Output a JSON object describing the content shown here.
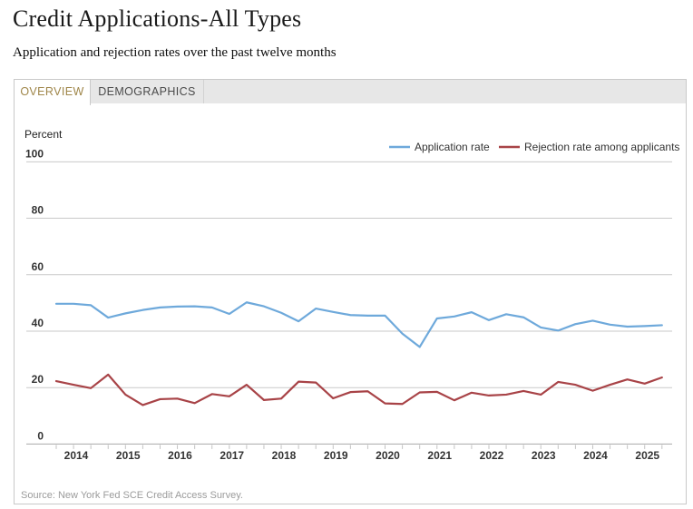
{
  "header": {
    "title": "Credit Applications-All Types",
    "subtitle": "Application and rejection rates over the past twelve months"
  },
  "tabs": [
    {
      "label": "OVERVIEW",
      "active": true
    },
    {
      "label": "DEMOGRAPHICS",
      "active": false
    }
  ],
  "footer": {
    "source": "Source: New York Fed SCE Credit Access Survey."
  },
  "colors": {
    "application_rate": "#6EA9DB",
    "rejection_rate": "#A84347",
    "active_tab_text": "#9F8649",
    "gridline": "#c9c9c9",
    "axis_line": "#a9a9a9"
  },
  "chart_data": {
    "type": "line",
    "title": "Credit Applications-All Types",
    "unit_label": "Percent",
    "ylim": [
      0,
      100
    ],
    "yticks": [
      0,
      20,
      40,
      60,
      80,
      100
    ],
    "grid": "horizontal",
    "legend_position": "top-right",
    "year_ticks": [
      2014,
      2015,
      2016,
      2017,
      2018,
      2019,
      2020,
      2021,
      2022,
      2023,
      2024,
      2025
    ],
    "x_labels": [
      "Oct 2013",
      "Feb 2014",
      "Jun 2014",
      "Oct 2014",
      "Feb 2015",
      "Jun 2015",
      "Oct 2015",
      "Feb 2016",
      "Jun 2016",
      "Oct 2016",
      "Feb 2017",
      "Jun 2017",
      "Oct 2017",
      "Feb 2018",
      "Jun 2018",
      "Oct 2018",
      "Feb 2019",
      "Jun 2019",
      "Oct 2019",
      "Feb 2020",
      "Jun 2020",
      "Oct 2020",
      "Feb 2021",
      "Jun 2021",
      "Oct 2021",
      "Feb 2022",
      "Jun 2022",
      "Oct 2022",
      "Feb 2023",
      "Jun 2023",
      "Oct 2023",
      "Feb 2024",
      "Jun 2024",
      "Oct 2024",
      "Feb 2025",
      "Jun 2025"
    ],
    "series": [
      {
        "name": "Application rate",
        "color": "#6EA9DB",
        "values": [
          49.7,
          49.7,
          49.2,
          44.8,
          46.3,
          47.5,
          48.4,
          48.7,
          48.8,
          48.4,
          46.1,
          50.2,
          48.8,
          46.5,
          43.5,
          48.0,
          46.8,
          45.7,
          45.5,
          45.5,
          39.1,
          34.4,
          44.5,
          45.2,
          46.7,
          43.9,
          46.0,
          44.9,
          41.3,
          40.2,
          42.5,
          43.7,
          42.3,
          41.6,
          41.8,
          42.1
        ]
      },
      {
        "name": "Rejection rate among applicants",
        "color": "#A84347",
        "values": [
          22.3,
          21.0,
          19.8,
          24.6,
          17.5,
          13.8,
          15.9,
          16.1,
          14.5,
          17.7,
          16.9,
          21.0,
          15.6,
          16.1,
          22.1,
          21.8,
          16.2,
          18.4,
          18.7,
          14.4,
          14.2,
          18.3,
          18.5,
          15.5,
          18.2,
          17.2,
          17.5,
          18.8,
          17.5,
          22.0,
          21.0,
          18.9,
          21.0,
          22.9,
          21.4,
          23.6
        ]
      }
    ]
  }
}
